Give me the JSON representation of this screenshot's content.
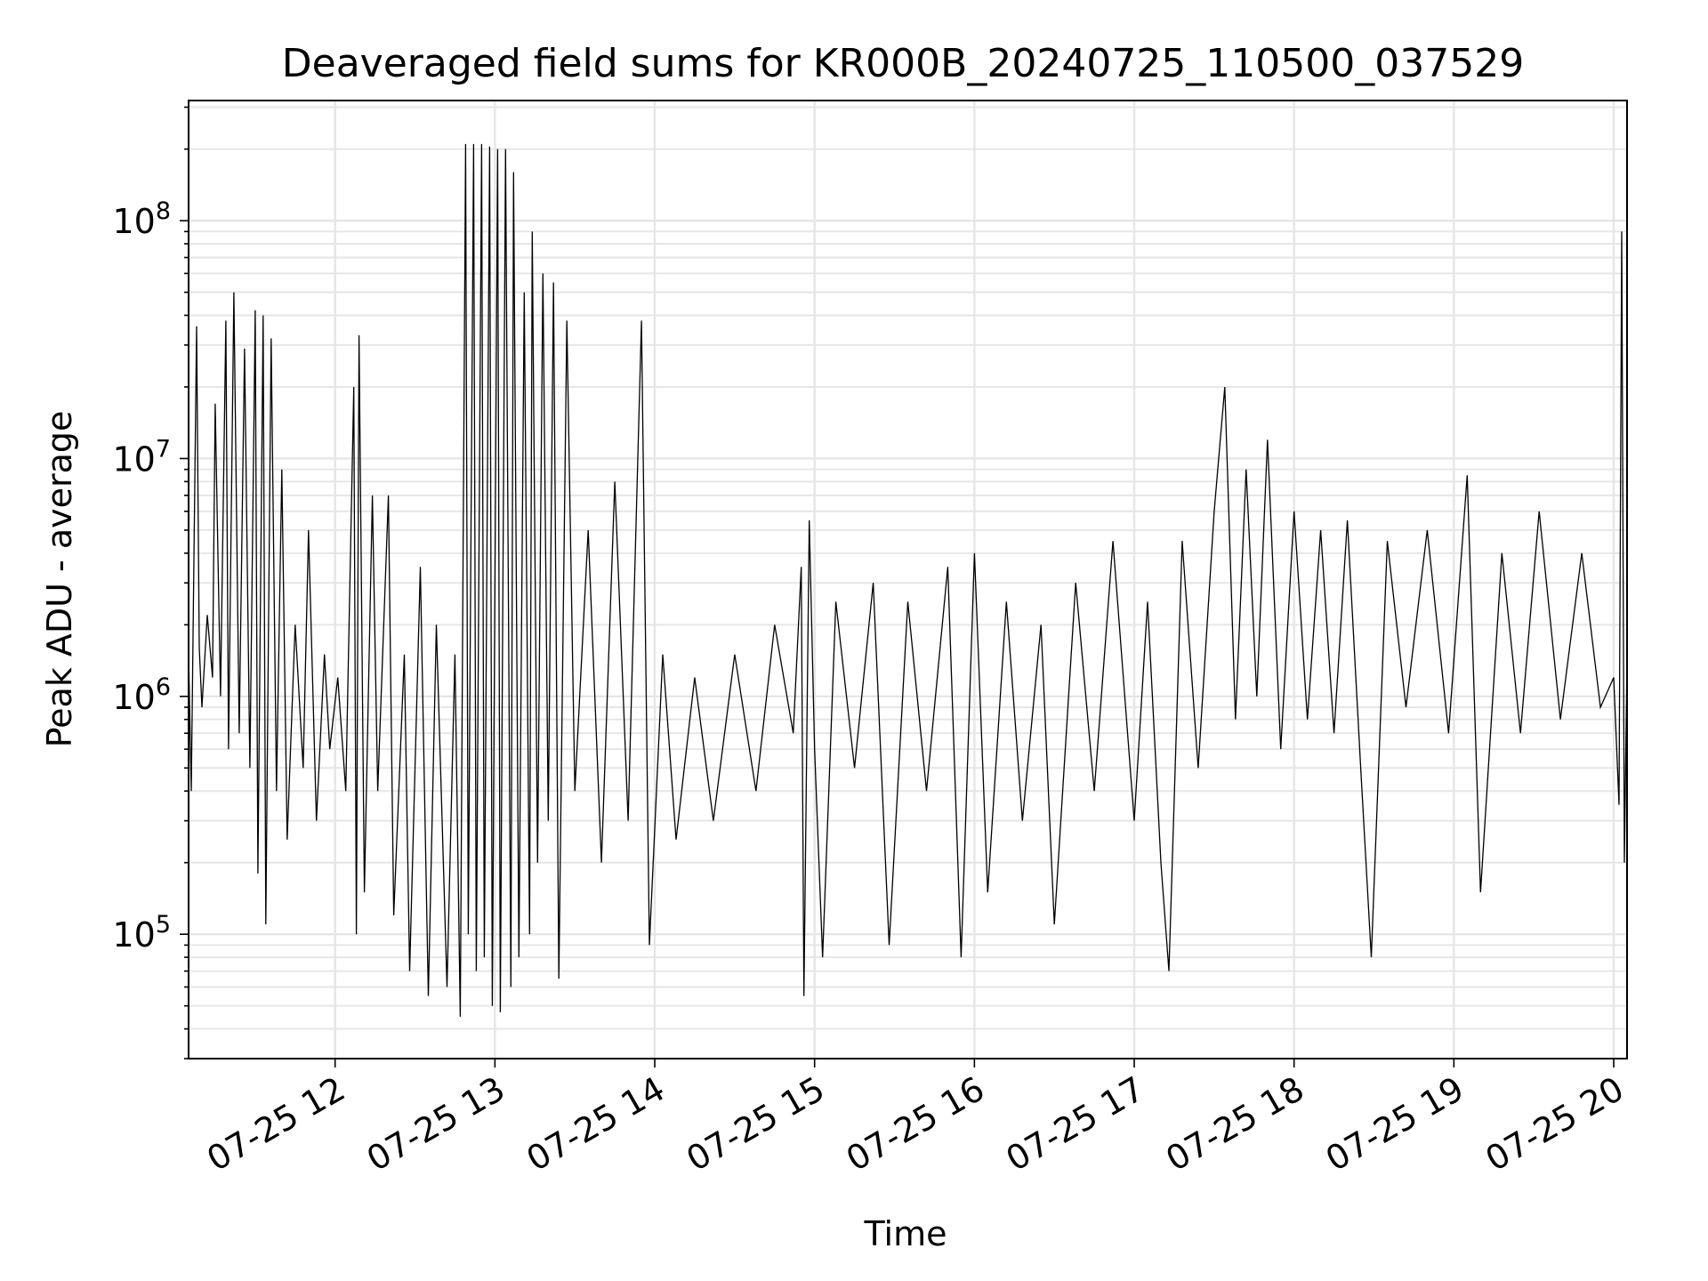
{
  "chart_data": {
    "type": "line",
    "title": "Deaveraged field sums for KR000B_20240725_110500_037529",
    "xlabel": "Time",
    "ylabel": "Peak ADU - average",
    "yscale": "log",
    "xlim": [
      "2024-07-25T11:05",
      "2024-07-25T20:05"
    ],
    "ylim": [
      30000,
      320000000
    ],
    "grid": true,
    "x_ticks": [
      "07-25 12",
      "07-25 13",
      "07-25 14",
      "07-25 15",
      "07-25 16",
      "07-25 17",
      "07-25 18",
      "07-25 19",
      "07-25 20"
    ],
    "y_ticks": [
      {
        "base": "10",
        "exp": "5",
        "value": 100000
      },
      {
        "base": "10",
        "exp": "6",
        "value": 1000000
      },
      {
        "base": "10",
        "exp": "7",
        "value": 10000000
      },
      {
        "base": "10",
        "exp": "8",
        "value": 100000000
      }
    ],
    "series": [
      {
        "color": "#000000",
        "points": [
          [
            "2024-07-25T11:05",
            1500000
          ],
          [
            "2024-07-25T11:06",
            400000
          ],
          [
            "2024-07-25T11:08",
            36000000
          ],
          [
            "2024-07-25T11:09",
            1600000
          ],
          [
            "2024-07-25T11:10",
            900000
          ],
          [
            "2024-07-25T11:12",
            2200000
          ],
          [
            "2024-07-25T11:14",
            1200000
          ],
          [
            "2024-07-25T11:15",
            17000000
          ],
          [
            "2024-07-25T11:17",
            1000000
          ],
          [
            "2024-07-25T11:19",
            38000000
          ],
          [
            "2024-07-25T11:20",
            600000
          ],
          [
            "2024-07-25T11:22",
            50000000
          ],
          [
            "2024-07-25T11:24",
            700000
          ],
          [
            "2024-07-25T11:26",
            29000000
          ],
          [
            "2024-07-25T11:28",
            500000
          ],
          [
            "2024-07-25T11:30",
            42000000
          ],
          [
            "2024-07-25T11:31",
            180000
          ],
          [
            "2024-07-25T11:33",
            40000000
          ],
          [
            "2024-07-25T11:34",
            110000
          ],
          [
            "2024-07-25T11:36",
            32000000
          ],
          [
            "2024-07-25T11:38",
            400000
          ],
          [
            "2024-07-25T11:40",
            9000000
          ],
          [
            "2024-07-25T11:42",
            250000
          ],
          [
            "2024-07-25T11:45",
            2000000
          ],
          [
            "2024-07-25T11:48",
            500000
          ],
          [
            "2024-07-25T11:50",
            5000000
          ],
          [
            "2024-07-25T11:53",
            300000
          ],
          [
            "2024-07-25T11:56",
            1500000
          ],
          [
            "2024-07-25T11:58",
            600000
          ],
          [
            "2024-07-25T12:01",
            1200000
          ],
          [
            "2024-07-25T12:04",
            400000
          ],
          [
            "2024-07-25T12:07",
            20000000
          ],
          [
            "2024-07-25T12:08",
            100000
          ],
          [
            "2024-07-25T12:09",
            33000000
          ],
          [
            "2024-07-25T12:11",
            150000
          ],
          [
            "2024-07-25T12:14",
            7000000
          ],
          [
            "2024-07-25T12:16",
            400000
          ],
          [
            "2024-07-25T12:20",
            7000000
          ],
          [
            "2024-07-25T12:22",
            120000
          ],
          [
            "2024-07-25T12:26",
            1500000
          ],
          [
            "2024-07-25T12:28",
            70000
          ],
          [
            "2024-07-25T12:32",
            3500000
          ],
          [
            "2024-07-25T12:35",
            55000
          ],
          [
            "2024-07-25T12:38",
            2000000
          ],
          [
            "2024-07-25T12:42",
            60000
          ],
          [
            "2024-07-25T12:45",
            1500000
          ],
          [
            "2024-07-25T12:47",
            45000
          ],
          [
            "2024-07-25T12:49",
            210000000
          ],
          [
            "2024-07-25T12:50",
            100000
          ],
          [
            "2024-07-25T12:52",
            210000000
          ],
          [
            "2024-07-25T12:53",
            70000
          ],
          [
            "2024-07-25T12:55",
            210000000
          ],
          [
            "2024-07-25T12:56",
            80000
          ],
          [
            "2024-07-25T12:58",
            205000000
          ],
          [
            "2024-07-25T12:59",
            50000
          ],
          [
            "2024-07-25T13:01",
            200000000
          ],
          [
            "2024-07-25T13:02",
            47000
          ],
          [
            "2024-07-25T13:04",
            200000000
          ],
          [
            "2024-07-25T13:06",
            60000
          ],
          [
            "2024-07-25T13:07",
            160000000
          ],
          [
            "2024-07-25T13:09",
            80000
          ],
          [
            "2024-07-25T13:11",
            50000000
          ],
          [
            "2024-07-25T13:13",
            100000
          ],
          [
            "2024-07-25T13:14",
            90000000
          ],
          [
            "2024-07-25T13:16",
            200000
          ],
          [
            "2024-07-25T13:18",
            60000000
          ],
          [
            "2024-07-25T13:20",
            300000
          ],
          [
            "2024-07-25T13:22",
            55000000
          ],
          [
            "2024-07-25T13:24",
            65000
          ],
          [
            "2024-07-25T13:27",
            38000000
          ],
          [
            "2024-07-25T13:30",
            400000
          ],
          [
            "2024-07-25T13:35",
            5000000
          ],
          [
            "2024-07-25T13:40",
            200000
          ],
          [
            "2024-07-25T13:45",
            8000000
          ],
          [
            "2024-07-25T13:50",
            300000
          ],
          [
            "2024-07-25T13:55",
            38000000
          ],
          [
            "2024-07-25T13:58",
            90000
          ],
          [
            "2024-07-25T14:03",
            1500000
          ],
          [
            "2024-07-25T14:08",
            250000
          ],
          [
            "2024-07-25T14:15",
            1200000
          ],
          [
            "2024-07-25T14:22",
            300000
          ],
          [
            "2024-07-25T14:30",
            1500000
          ],
          [
            "2024-07-25T14:38",
            400000
          ],
          [
            "2024-07-25T14:45",
            2000000
          ],
          [
            "2024-07-25T14:52",
            700000
          ],
          [
            "2024-07-25T14:55",
            3500000
          ],
          [
            "2024-07-25T14:56",
            55000
          ],
          [
            "2024-07-25T14:58",
            5500000
          ],
          [
            "2024-07-25T15:00",
            600000
          ],
          [
            "2024-07-25T15:03",
            80000
          ],
          [
            "2024-07-25T15:08",
            2500000
          ],
          [
            "2024-07-25T15:15",
            500000
          ],
          [
            "2024-07-25T15:22",
            3000000
          ],
          [
            "2024-07-25T15:28",
            90000
          ],
          [
            "2024-07-25T15:35",
            2500000
          ],
          [
            "2024-07-25T15:42",
            400000
          ],
          [
            "2024-07-25T15:50",
            3500000
          ],
          [
            "2024-07-25T15:55",
            80000
          ],
          [
            "2024-07-25T16:00",
            4000000
          ],
          [
            "2024-07-25T16:05",
            150000
          ],
          [
            "2024-07-25T16:12",
            2500000
          ],
          [
            "2024-07-25T16:18",
            300000
          ],
          [
            "2024-07-25T16:25",
            2000000
          ],
          [
            "2024-07-25T16:30",
            110000
          ],
          [
            "2024-07-25T16:38",
            3000000
          ],
          [
            "2024-07-25T16:45",
            400000
          ],
          [
            "2024-07-25T16:52",
            4500000
          ],
          [
            "2024-07-25T17:00",
            300000
          ],
          [
            "2024-07-25T17:05",
            2500000
          ],
          [
            "2024-07-25T17:10",
            200000
          ],
          [
            "2024-07-25T17:13",
            70000
          ],
          [
            "2024-07-25T17:18",
            4500000
          ],
          [
            "2024-07-25T17:24",
            500000
          ],
          [
            "2024-07-25T17:30",
            6000000
          ],
          [
            "2024-07-25T17:34",
            20000000
          ],
          [
            "2024-07-25T17:38",
            800000
          ],
          [
            "2024-07-25T17:42",
            9000000
          ],
          [
            "2024-07-25T17:46",
            1000000
          ],
          [
            "2024-07-25T17:50",
            12000000
          ],
          [
            "2024-07-25T17:55",
            600000
          ],
          [
            "2024-07-25T18:00",
            6000000
          ],
          [
            "2024-07-25T18:05",
            800000
          ],
          [
            "2024-07-25T18:10",
            5000000
          ],
          [
            "2024-07-25T18:15",
            700000
          ],
          [
            "2024-07-25T18:20",
            5500000
          ],
          [
            "2024-07-25T18:25",
            500000
          ],
          [
            "2024-07-25T18:29",
            80000
          ],
          [
            "2024-07-25T18:35",
            4500000
          ],
          [
            "2024-07-25T18:42",
            900000
          ],
          [
            "2024-07-25T18:50",
            5000000
          ],
          [
            "2024-07-25T18:58",
            700000
          ],
          [
            "2024-07-25T19:05",
            8500000
          ],
          [
            "2024-07-25T19:10",
            150000
          ],
          [
            "2024-07-25T19:18",
            4000000
          ],
          [
            "2024-07-25T19:25",
            700000
          ],
          [
            "2024-07-25T19:32",
            6000000
          ],
          [
            "2024-07-25T19:40",
            800000
          ],
          [
            "2024-07-25T19:48",
            4000000
          ],
          [
            "2024-07-25T19:55",
            900000
          ],
          [
            "2024-07-25T20:00",
            1200000
          ],
          [
            "2024-07-25T20:02",
            350000
          ],
          [
            "2024-07-25T20:03",
            90000000
          ],
          [
            "2024-07-25T20:04",
            200000
          ],
          [
            "2024-07-25T20:05",
            1500000
          ]
        ]
      }
    ]
  }
}
